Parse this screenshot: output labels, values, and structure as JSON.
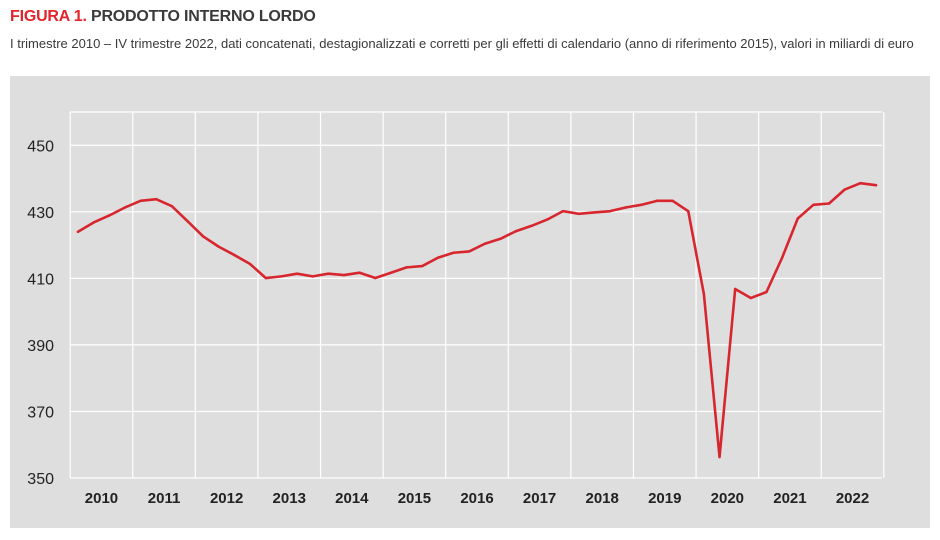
{
  "header": {
    "title_prefix": "FIGURA 1.",
    "title": "PRODOTTO INTERNO LORDO",
    "subtitle": "I trimestre 2010 – IV trimestre 2022, dati concatenati, destagionalizzati e corretti per gli effetti di calendario (anno di riferimento 2015), valori in miliardi di euro"
  },
  "colors": {
    "series": "#d7262e",
    "panel_background": "#dedede",
    "grid": "#ffffff",
    "title_accent": "#e3242b"
  },
  "chart_data": {
    "type": "line",
    "title": "PRODOTTO INTERNO LORDO",
    "xlabel": "",
    "ylabel": "",
    "ylim": [
      350,
      460
    ],
    "yticks": [
      350,
      370,
      390,
      410,
      430,
      450
    ],
    "ytick_labels": [
      "350",
      "370",
      "390",
      "410",
      "430",
      "450"
    ],
    "years": [
      "2010",
      "2011",
      "2012",
      "2013",
      "2014",
      "2015",
      "2016",
      "2017",
      "2018",
      "2019",
      "2020",
      "2021",
      "2022"
    ],
    "grid": true,
    "legend": "none",
    "series": [
      {
        "values": [
          424.0,
          426.8,
          428.9,
          431.3,
          433.3,
          433.8,
          431.7,
          427.2,
          422.6,
          419.5,
          417.0,
          414.3,
          410.1,
          410.6,
          411.4,
          410.6,
          411.4,
          411.0,
          411.7,
          410.1,
          411.7,
          413.3,
          413.7,
          416.2,
          417.7,
          418.1,
          420.4,
          421.9,
          424.2,
          425.8,
          427.7,
          430.2,
          429.4,
          429.8,
          430.2,
          431.3,
          432.1,
          433.3,
          433.3,
          430.2,
          405.3,
          356.3,
          406.8,
          404.1,
          405.9,
          416.2,
          428.0,
          432.1,
          432.5,
          436.7,
          438.6,
          438.0
        ]
      }
    ]
  }
}
